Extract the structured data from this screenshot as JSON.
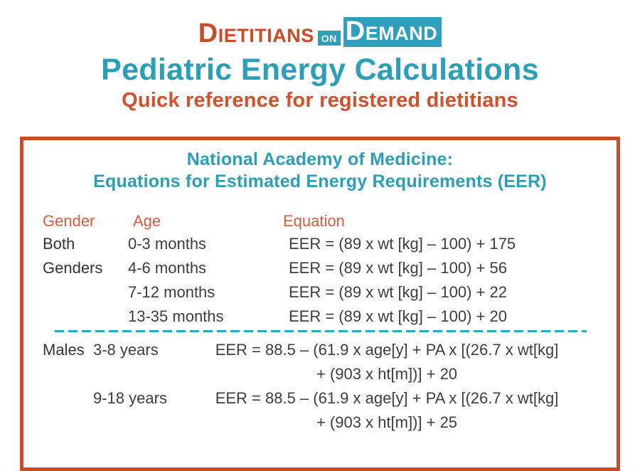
{
  "logo": {
    "part1_initial": "D",
    "part1_rest": "IETITIANS",
    "on_label": "ON",
    "part2_initial": "D",
    "part2_rest": "EMAND"
  },
  "header": {
    "title": "Pediatric Energy Calculations",
    "subtitle": "Quick reference for registered dietitians"
  },
  "panel": {
    "title_line1": "National Academy of Medicine:",
    "title_line2": "Equations for Estimated Energy Requirements (EER)",
    "columns": [
      "Gender",
      "Age",
      "Equation"
    ],
    "sections": [
      {
        "gender_lines": [
          "Both",
          "Genders"
        ],
        "rows": [
          {
            "age": "0-3 months",
            "equation": "EER = (89 x wt [kg] – 100) + 175"
          },
          {
            "age": "4-6 months",
            "equation": "EER = (89 x wt [kg] – 100) + 56"
          },
          {
            "age": "7-12 months",
            "equation": "EER = (89 x wt [kg] – 100) + 22"
          },
          {
            "age": "13-35 months",
            "equation": "EER = (89 x wt [kg] – 100) + 20"
          }
        ]
      },
      {
        "gender_lines": [
          "Males"
        ],
        "rows": [
          {
            "age": "3-8 years",
            "equation_line1": "EER = 88.5 – (61.9 x age[y] + PA x [(26.7 x wt[kg]",
            "equation_line2": "+ (903 x ht[m])] + 20"
          },
          {
            "age": "9-18 years",
            "equation_line1": "EER = 88.5 – (61.9 x age[y] + PA x [(26.7 x wt[kg]",
            "equation_line2": "+ (903 x ht[m])] + 25"
          }
        ]
      }
    ]
  },
  "colors": {
    "teal": "#2b9eba",
    "logo_teal": "#2e9fbe",
    "orange_border": "#cc4a26",
    "orange_subtitle": "#d2502c",
    "orange_table_header": "#dc5b39",
    "dashed_line_teal": "#29a7cb",
    "body_text": "#3d3d3d"
  }
}
